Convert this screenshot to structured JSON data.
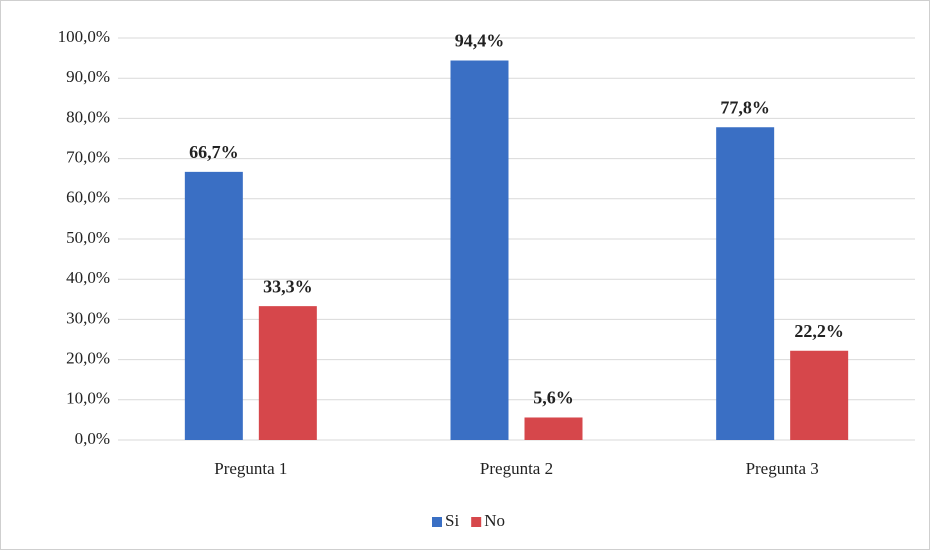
{
  "chart_data": {
    "type": "bar",
    "categories": [
      "Pregunta 1",
      "Pregunta 2",
      "Pregunta 3"
    ],
    "series": [
      {
        "name": "Si",
        "color": "#3a6fc4",
        "values": [
          66.7,
          94.4,
          77.8
        ],
        "value_labels": [
          "66,7%",
          "94,4%",
          "77,8%"
        ]
      },
      {
        "name": "No",
        "color": "#d6474b",
        "values": [
          33.3,
          5.6,
          22.2
        ],
        "value_labels": [
          "33,3%",
          "5,6%",
          "22,2%"
        ]
      }
    ],
    "ylim": [
      0,
      100
    ],
    "yticks": [
      {
        "value": 0,
        "label": "0,0%"
      },
      {
        "value": 10,
        "label": "10,0%"
      },
      {
        "value": 20,
        "label": "20,0%"
      },
      {
        "value": 30,
        "label": "30,0%"
      },
      {
        "value": 40,
        "label": "40,0%"
      },
      {
        "value": 50,
        "label": "50,0%"
      },
      {
        "value": 60,
        "label": "60,0%"
      },
      {
        "value": 70,
        "label": "70,0%"
      },
      {
        "value": 80,
        "label": "80,0%"
      },
      {
        "value": 90,
        "label": "90,0%"
      },
      {
        "value": 100,
        "label": "100,0%"
      }
    ],
    "grid": true,
    "legend": "bottom"
  }
}
